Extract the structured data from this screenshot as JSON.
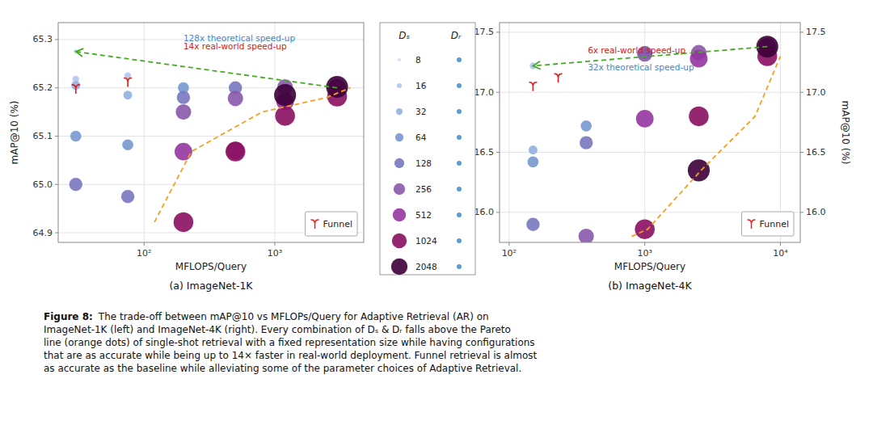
{
  "chart_data": [
    {
      "type": "scatter",
      "title": "(a) ImageNet-1K",
      "xlabel": "MFLOPS/Query",
      "ylabel": "mAP@10 (%)",
      "log": "x",
      "grid": true,
      "legend": "lower right",
      "xlim": [
        22,
        4800
      ],
      "ylim": [
        64.88,
        65.335
      ],
      "xticks": [
        {
          "value": 100,
          "label": "10²"
        },
        {
          "value": 1000,
          "label": "10³"
        }
      ],
      "yticks": [
        64.9,
        {
          "value": 65,
          "label": "65.0"
        },
        65.1,
        65.2,
        65.3
      ],
      "series": [
        {
          "name": "8",
          "type": "scatter",
          "marker": "circle",
          "color": "#cfdff5",
          "x": [
            30
          ],
          "values": [
            65.275
          ]
        },
        {
          "name": "16",
          "type": "scatter",
          "marker": "circle",
          "color": "#b0c8ee",
          "x": [
            30,
            75
          ],
          "values": [
            65.218,
            65.225
          ]
        },
        {
          "name": "32",
          "type": "scatter",
          "marker": "circle",
          "color": "#92b0e0",
          "x": [
            30,
            75
          ],
          "values": [
            65.205,
            65.185
          ]
        },
        {
          "name": "64",
          "type": "scatter",
          "marker": "circle",
          "color": "#7898d0",
          "x": [
            30,
            75,
            200
          ],
          "values": [
            65.1,
            65.082,
            65.2
          ]
        },
        {
          "name": "128",
          "type": "scatter",
          "marker": "circle",
          "color": "#7878c0",
          "x": [
            30,
            75,
            200,
            500
          ],
          "values": [
            65,
            64.975,
            65.18,
            65.2
          ]
        },
        {
          "name": "256",
          "type": "scatter",
          "marker": "circle",
          "color": "#8858aa",
          "x": [
            200,
            500,
            1200
          ],
          "values": [
            65.15,
            65.178,
            65.202
          ]
        },
        {
          "name": "512",
          "type": "scatter",
          "marker": "circle",
          "color": "#9535a0",
          "x": [
            200,
            500,
            1200,
            3000
          ],
          "values": [
            65.068,
            65.07,
            65.172,
            65.2
          ]
        },
        {
          "name": "1024",
          "type": "scatter",
          "marker": "circle",
          "color": "#8a1060",
          "x": [
            200,
            500,
            1200,
            3000
          ],
          "values": [
            64.922,
            65.068,
            65.142,
            65.182
          ]
        },
        {
          "name": "2048",
          "type": "scatter",
          "marker": "circle",
          "color": "#3d0038",
          "x": [
            1200,
            3000
          ],
          "values": [
            65.185,
            65.202
          ]
        },
        {
          "type": "line",
          "line_style": "dashed",
          "color": "#f5a020",
          "x": [
            120,
            230,
            800,
            2500,
            3800
          ],
          "values": [
            64.922,
            65.068,
            65.15,
            65.18,
            65.2
          ]
        },
        {
          "type": "arrow",
          "line_style": "dashed",
          "color": "#44aa22",
          "x": [
            3000,
            30
          ],
          "values": [
            65.2,
            65.275
          ]
        },
        {
          "name": "Funnel",
          "type": "scatter",
          "marker": "upsilon",
          "color": "#dd2222",
          "x": [
            30,
            75
          ],
          "values": [
            65.198,
            65.212
          ]
        }
      ],
      "annotations": [
        {
          "text": "128x theoretical speed-up",
          "color": "#4488cc",
          "x": 200,
          "y": 65.31
        },
        {
          "text": "14x real-world speed-up",
          "color": "#cc2222",
          "x": 200,
          "y": 65.293
        }
      ]
    },
    {
      "type": "scatter",
      "title": "(b) ImageNet-4K",
      "xlabel": "MFLOPS/Query",
      "y2label": "mAP@10 (%)",
      "log": "x",
      "grid": true,
      "legend": "lower right",
      "xlim": [
        85,
        14000
      ],
      "ylim": [
        15.75,
        17.58
      ],
      "xticks": [
        {
          "value": 100,
          "label": "10²"
        },
        {
          "value": 1000,
          "label": "10³"
        },
        {
          "value": 10000,
          "label": "10⁴"
        }
      ],
      "yticks": [
        {
          "value": 16,
          "label": "16.0"
        },
        16.5,
        {
          "value": 17,
          "label": "17.0"
        },
        17.5
      ],
      "y2lim": [
        15.75,
        17.58
      ],
      "y2ticks": [
        {
          "value": 16,
          "label": "16.0"
        },
        16.5,
        {
          "value": 17,
          "label": "17.0"
        },
        17.5
      ],
      "series": [
        {
          "name": "16",
          "type": "scatter",
          "marker": "circle",
          "color": "#b0c8ee",
          "x": [
            150
          ],
          "values": [
            17.22
          ]
        },
        {
          "name": "32",
          "type": "scatter",
          "marker": "circle",
          "color": "#92b0e0",
          "x": [
            150
          ],
          "values": [
            16.52
          ]
        },
        {
          "name": "64",
          "type": "scatter",
          "marker": "circle",
          "color": "#7898d0",
          "x": [
            150,
            370
          ],
          "values": [
            16.42,
            16.72
          ]
        },
        {
          "name": "128",
          "type": "scatter",
          "marker": "circle",
          "color": "#7878c0",
          "x": [
            150,
            370,
            1000
          ],
          "values": [
            15.9,
            16.58,
            17.33
          ]
        },
        {
          "name": "256",
          "type": "scatter",
          "marker": "circle",
          "color": "#8858aa",
          "x": [
            370,
            1000,
            2500
          ],
          "values": [
            15.8,
            17.32,
            17.33
          ]
        },
        {
          "name": "512",
          "type": "scatter",
          "marker": "circle",
          "color": "#9535a0",
          "x": [
            1000,
            2500,
            8000
          ],
          "values": [
            16.78,
            17.28,
            17.38
          ]
        },
        {
          "name": "1024",
          "type": "scatter",
          "marker": "circle",
          "color": "#8a1060",
          "x": [
            1000,
            2500,
            8000
          ],
          "values": [
            15.86,
            16.8,
            17.3
          ]
        },
        {
          "name": "2048",
          "type": "scatter",
          "marker": "circle",
          "color": "#3d0038",
          "x": [
            2500,
            8000
          ],
          "values": [
            16.35,
            17.38
          ]
        },
        {
          "type": "line",
          "line_style": "dashed",
          "color": "#f5a020",
          "x": [
            800,
            1050,
            2600,
            6500,
            10000
          ],
          "values": [
            15.8,
            15.86,
            16.35,
            16.8,
            17.3
          ]
        },
        {
          "type": "arrow",
          "line_style": "dashed",
          "color": "#44aa22",
          "x": [
            8000,
            150
          ],
          "values": [
            17.38,
            17.22
          ]
        },
        {
          "name": "Funnel",
          "type": "scatter",
          "marker": "upsilon",
          "color": "#dd2222",
          "x": [
            150,
            230
          ],
          "values": [
            17.05,
            17.12
          ]
        }
      ],
      "annotations": [
        {
          "text": "6x real-world speed-up",
          "color": "#cc2222",
          "x": 380,
          "y": 17.38
        },
        {
          "text": "32x theoretical speed-up",
          "color": "#4488cc",
          "x": 380,
          "y": 17.24
        }
      ]
    }
  ],
  "legend_panel": {
    "columns": [
      {
        "name": "Dₛ"
      },
      {
        "name": "Dᵣ",
        "color": "#4a90d0"
      }
    ]
  },
  "caption": {
    "bold": "Figure 8:",
    "lines": [
      "The trade-off between mAP@10 vs MFLOPs/Query for Adaptive Retrieval (AR) on",
      "ImageNet-1K (left) and ImageNet-4K (right). Every combination of Dₛ & Dᵣ falls above the Pareto",
      "line (orange dots) of single-shot retrieval with a fixed representation size while having configurations",
      "that are as accurate while being up to 14× faster in real-world deployment. Funnel retrieval is almost",
      "as accurate as the baseline while alleviating some of the parameter choices of Adaptive Retrieval."
    ]
  }
}
